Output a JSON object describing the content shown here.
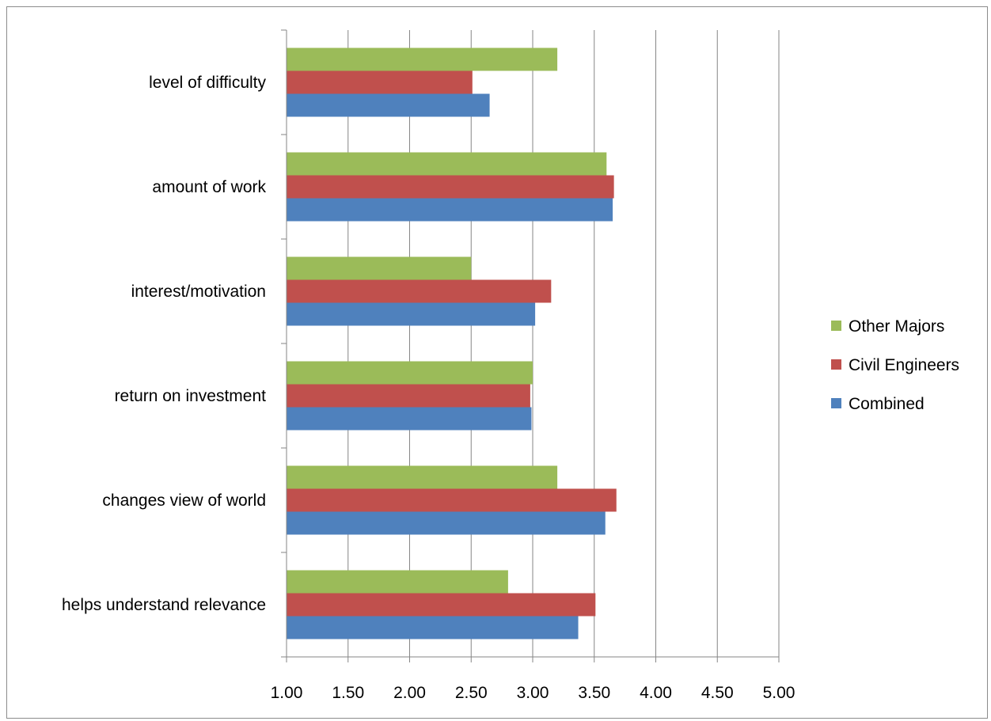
{
  "chart_data": {
    "type": "bar",
    "orientation": "horizontal",
    "categories": [
      "level of difficulty",
      "amount of work",
      "interest/motivation",
      "return on investment",
      "changes view of world",
      "helps understand relevance"
    ],
    "series": [
      {
        "name": "Other Majors",
        "color": "#9bbb59",
        "values": [
          3.2,
          3.6,
          2.5,
          3.0,
          3.2,
          2.8
        ]
      },
      {
        "name": "Civil Engineers",
        "color": "#c0504d",
        "values": [
          2.51,
          3.66,
          3.15,
          2.98,
          3.68,
          3.51
        ]
      },
      {
        "name": "Combined",
        "color": "#4f81bd",
        "values": [
          2.65,
          3.65,
          3.02,
          2.99,
          3.59,
          3.37
        ]
      }
    ],
    "x_ticks": [
      "1.00",
      "1.50",
      "2.00",
      "2.50",
      "3.00",
      "3.50",
      "4.00",
      "4.50",
      "5.00"
    ],
    "xlim": [
      1,
      5
    ],
    "title": "",
    "xlabel": "",
    "ylabel": "",
    "grid": "vertical",
    "legend": {
      "position": "right",
      "order": [
        "Other Majors",
        "Civil Engineers",
        "Combined"
      ]
    }
  }
}
